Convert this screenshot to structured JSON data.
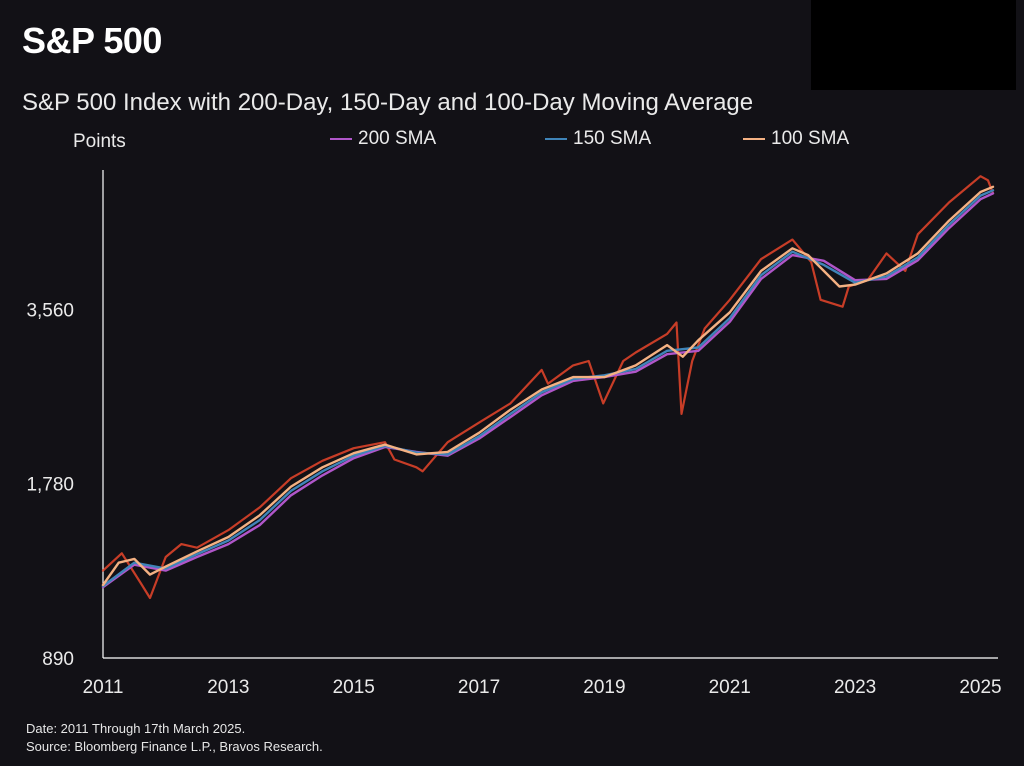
{
  "header": {
    "title": "S&P 500",
    "subtitle": "S&P 500 Index with 200-Day, 150-Day and 100-Day Moving Average"
  },
  "footer": {
    "date_note": "Date: 2011 Through 17th March 2025.",
    "source_note": "Source: Bloomberg Finance L.P., Bravos Research."
  },
  "chart_data": {
    "type": "line",
    "title": "S&P 500 Index with 200-Day, 150-Day and 100-Day Moving Average",
    "xlabel": "",
    "ylabel": "Points",
    "y_scale": "log",
    "ylim": [
      890,
      6200
    ],
    "xlim": [
      2011.0,
      2025.2
    ],
    "y_ticks": [
      890,
      1780,
      3560
    ],
    "y_tick_labels": [
      "890",
      "1,780",
      "3,560"
    ],
    "x_ticks": [
      2011,
      2013,
      2015,
      2017,
      2019,
      2021,
      2023,
      2025
    ],
    "x_tick_labels": [
      "2011",
      "2013",
      "2015",
      "2017",
      "2019",
      "2021",
      "2023",
      "2025"
    ],
    "legend_position": "top-center",
    "grid": false,
    "price_color": "#e8452a",
    "series": [
      {
        "name": "200 SMA",
        "color": "#b056c9",
        "x": [
          2011.0,
          2011.5,
          2012.0,
          2012.5,
          2013.0,
          2013.5,
          2014.0,
          2014.5,
          2015.0,
          2015.5,
          2016.0,
          2016.5,
          2017.0,
          2017.5,
          2018.0,
          2018.5,
          2019.0,
          2019.5,
          2020.0,
          2020.5,
          2021.0,
          2021.5,
          2022.0,
          2022.5,
          2023.0,
          2023.5,
          2024.0,
          2024.5,
          2025.0,
          2025.2
        ],
        "values": [
          1180,
          1290,
          1260,
          1330,
          1400,
          1510,
          1700,
          1840,
          1970,
          2060,
          2020,
          1990,
          2130,
          2320,
          2530,
          2680,
          2720,
          2780,
          2980,
          3020,
          3390,
          4020,
          4420,
          4320,
          4000,
          4020,
          4330,
          4920,
          5520,
          5650
        ]
      },
      {
        "name": "150 SMA",
        "color": "#3f84b8",
        "x": [
          2011.0,
          2011.5,
          2012.0,
          2012.5,
          2013.0,
          2013.5,
          2014.0,
          2014.5,
          2015.0,
          2015.5,
          2016.0,
          2016.5,
          2017.0,
          2017.5,
          2018.0,
          2018.5,
          2019.0,
          2019.5,
          2020.0,
          2020.5,
          2021.0,
          2021.5,
          2022.0,
          2022.5,
          2023.0,
          2023.5,
          2024.0,
          2024.5,
          2025.0,
          2025.2
        ],
        "values": [
          1185,
          1300,
          1270,
          1345,
          1420,
          1540,
          1730,
          1870,
          1990,
          2070,
          2015,
          2000,
          2150,
          2350,
          2560,
          2700,
          2740,
          2810,
          3020,
          3060,
          3440,
          4080,
          4480,
          4250,
          3960,
          4060,
          4380,
          4990,
          5600,
          5720
        ]
      },
      {
        "name": "100 SMA",
        "color": "#f4b183",
        "x": [
          2011.0,
          2011.25,
          2011.5,
          2011.75,
          2012.0,
          2012.5,
          2013.0,
          2013.5,
          2014.0,
          2014.5,
          2015.0,
          2015.5,
          2016.0,
          2016.5,
          2017.0,
          2017.5,
          2018.0,
          2018.5,
          2019.0,
          2019.5,
          2020.0,
          2020.25,
          2020.5,
          2021.0,
          2021.5,
          2022.0,
          2022.25,
          2022.5,
          2022.75,
          2023.0,
          2023.5,
          2024.0,
          2024.5,
          2025.0,
          2025.2
        ],
        "values": [
          1190,
          1300,
          1320,
          1240,
          1280,
          1360,
          1440,
          1570,
          1760,
          1900,
          2010,
          2080,
          2000,
          2020,
          2180,
          2390,
          2590,
          2720,
          2720,
          2850,
          3090,
          2950,
          3150,
          3520,
          4150,
          4540,
          4420,
          4150,
          3900,
          3930,
          4110,
          4450,
          5070,
          5680,
          5800
        ]
      },
      {
        "name": "S&P 500",
        "color": "#e8452a",
        "x": [
          2011.0,
          2011.3,
          2011.6,
          2011.75,
          2012.0,
          2012.25,
          2012.5,
          2013.0,
          2013.5,
          2014.0,
          2014.5,
          2015.0,
          2015.5,
          2015.65,
          2016.0,
          2016.1,
          2016.5,
          2017.0,
          2017.5,
          2018.0,
          2018.1,
          2018.5,
          2018.75,
          2018.98,
          2019.3,
          2019.5,
          2020.0,
          2020.15,
          2020.23,
          2020.4,
          2020.6,
          2021.0,
          2021.5,
          2022.0,
          2022.3,
          2022.45,
          2022.8,
          2022.9,
          2023.2,
          2023.5,
          2023.8,
          2024.0,
          2024.5,
          2025.0,
          2025.12,
          2025.2
        ],
        "values": [
          1260,
          1350,
          1200,
          1130,
          1330,
          1400,
          1380,
          1480,
          1620,
          1820,
          1950,
          2050,
          2100,
          1960,
          1900,
          1870,
          2100,
          2270,
          2450,
          2800,
          2650,
          2850,
          2900,
          2450,
          2900,
          3000,
          3230,
          3380,
          2350,
          2900,
          3300,
          3700,
          4350,
          4700,
          4300,
          3700,
          3600,
          3900,
          4000,
          4450,
          4150,
          4800,
          5450,
          6050,
          5950,
          5650
        ]
      }
    ]
  }
}
